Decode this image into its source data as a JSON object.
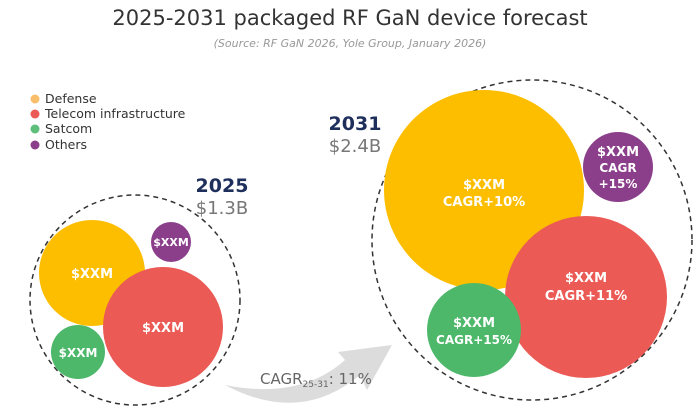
{
  "title": "2025-2031 packaged RF GaN device forecast",
  "subtitle": "(Source: RF GaN 2026, Yole Group, January 2026)",
  "colors": {
    "Defense": "#FDBE00",
    "Telecom infrastructure": "#EB5A55",
    "Satcom": "#4DB86A",
    "Others": "#8B3F8B"
  },
  "legend": [
    {
      "label": "Defense",
      "color": "#F9BE6A"
    },
    {
      "label": "Telecom infrastructure",
      "color": "#EB5A55"
    },
    {
      "label": "Satcom",
      "color": "#5CBF7A"
    },
    {
      "label": "Others",
      "color": "#8B3F8B"
    }
  ],
  "y2025": {
    "year": "2025",
    "total": "$1.3B",
    "bubbles": {
      "defense": {
        "value": "$XXM"
      },
      "telecom": {
        "value": "$XXM"
      },
      "satcom": {
        "value": "$XXM"
      },
      "others": {
        "value": "$XXM"
      }
    }
  },
  "y2031": {
    "year": "2031",
    "total": "$2.4B",
    "bubbles": {
      "defense": {
        "value": "$XXM",
        "cagr": "CAGR+10%"
      },
      "telecom": {
        "value": "$XXM",
        "cagr": "CAGR+11%"
      },
      "satcom": {
        "value": "$XXM",
        "cagr": "CAGR+15%"
      },
      "others": {
        "value": "$XXM",
        "cagr1": "CAGR",
        "cagr2": "+15%"
      }
    }
  },
  "arrow": {
    "label": "CAGR",
    "sub": "25-31",
    "value": ": 11%"
  }
}
